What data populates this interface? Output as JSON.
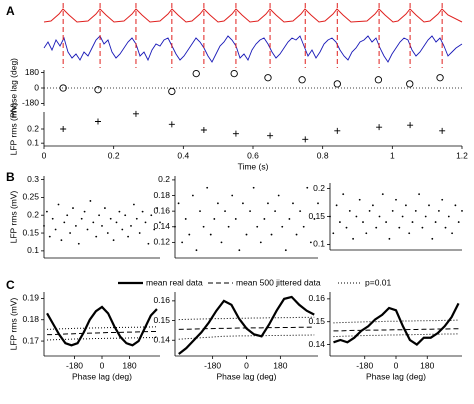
{
  "chart_data": [
    {
      "type": "scatter",
      "panel_label": "A",
      "ylabel": "Phase lag (deg)",
      "marker": "circle",
      "xlim": [
        0,
        1.2
      ],
      "ylim": [
        -210,
        210
      ],
      "yticks": [
        180,
        0,
        -180
      ],
      "reference_line": 0,
      "events": [
        0.055,
        0.161,
        0.264,
        0.367,
        0.459,
        0.551,
        0.649,
        0.75,
        0.842,
        0.962,
        1.051,
        1.143
      ],
      "event_color": "#e0201e",
      "x": [
        0.055,
        0.155,
        0.367,
        0.437,
        0.546,
        0.643,
        0.741,
        0.842,
        0.96,
        1.05,
        1.137
      ],
      "values": [
        0,
        -20,
        -40,
        168,
        168,
        120,
        96,
        48,
        96,
        48,
        120
      ],
      "color": "#000000"
    },
    {
      "type": "scatter",
      "ylabel": "LFP rms (mV)",
      "marker": "plus",
      "xlabel": "Time (s)",
      "xlim": [
        0,
        1.2
      ],
      "xticks": [
        0,
        0.2,
        0.4,
        0.6,
        0.8,
        1,
        1.2
      ],
      "ylim": [
        0.08,
        0.32
      ],
      "yticks": [
        0.2,
        0.1
      ],
      "x": [
        0.055,
        0.155,
        0.264,
        0.367,
        0.459,
        0.551,
        0.649,
        0.75,
        0.842,
        0.962,
        1.051,
        1.143
      ],
      "values": [
        0.2,
        0.253,
        0.307,
        0.233,
        0.193,
        0.167,
        0.153,
        0.127,
        0.187,
        0.213,
        0.227,
        0.187
      ],
      "color": "#000000"
    },
    {
      "type": "scatter",
      "panel_label": "B",
      "ylabel": "LFP rms (mV)",
      "marker": "dot",
      "xlim": [
        0,
        1
      ],
      "ylim": [
        0.08,
        0.31
      ],
      "yticks": [
        0.1,
        0.15,
        0.2,
        0.25,
        0.3
      ],
      "color": "#000000",
      "x": [
        0,
        0.025,
        0.05,
        0.075,
        0.1,
        0.125,
        0.15,
        0.175,
        0.2,
        0.225,
        0.25,
        0.275,
        0.3,
        0.325,
        0.35,
        0.375,
        0.4,
        0.425,
        0.45,
        0.475,
        0.5,
        0.525,
        0.55,
        0.575,
        0.6,
        0.625,
        0.65,
        0.675,
        0.7,
        0.725,
        0.75,
        0.775,
        0.8,
        0.825,
        0.85,
        0.875,
        0.9,
        0.925,
        0.95,
        0.975,
        1
      ],
      "values": [
        0.17,
        0.21,
        0.14,
        0.19,
        0.16,
        0.23,
        0.13,
        0.18,
        0.2,
        0.15,
        0.22,
        0.17,
        0.12,
        0.19,
        0.21,
        0.16,
        0.24,
        0.18,
        0.14,
        0.2,
        0.17,
        0.22,
        0.15,
        0.19,
        0.13,
        0.18,
        0.21,
        0.16,
        0.2,
        0.14,
        0.17,
        0.23,
        0.19,
        0.15,
        0.21,
        0.18,
        0.12,
        0.2,
        0.16,
        0.22,
        0.18
      ]
    },
    {
      "type": "scatter",
      "marker": "dot",
      "xlim": [
        0,
        1
      ],
      "ylim": [
        0.1,
        0.205
      ],
      "yticks": [
        0.12,
        0.14,
        0.16,
        0.18,
        0.2
      ],
      "color": "#000000",
      "x": [
        0,
        0.025,
        0.05,
        0.075,
        0.1,
        0.125,
        0.15,
        0.175,
        0.2,
        0.225,
        0.25,
        0.275,
        0.3,
        0.325,
        0.35,
        0.375,
        0.4,
        0.425,
        0.45,
        0.475,
        0.5,
        0.525,
        0.55,
        0.575,
        0.6,
        0.625,
        0.65,
        0.675,
        0.7,
        0.725,
        0.75,
        0.775,
        0.8,
        0.825,
        0.85,
        0.875,
        0.9,
        0.925,
        0.95,
        0.975,
        1
      ],
      "values": [
        0.14,
        0.17,
        0.12,
        0.15,
        0.13,
        0.18,
        0.11,
        0.16,
        0.14,
        0.19,
        0.13,
        0.15,
        0.17,
        0.12,
        0.16,
        0.14,
        0.18,
        0.15,
        0.11,
        0.17,
        0.13,
        0.16,
        0.19,
        0.14,
        0.12,
        0.15,
        0.17,
        0.13,
        0.16,
        0.18,
        0.14,
        0.11,
        0.15,
        0.17,
        0.13,
        0.16,
        0.14,
        0.19,
        0.12,
        0.15,
        0.17
      ]
    },
    {
      "type": "scatter",
      "marker": "dot",
      "xlim": [
        0,
        1
      ],
      "ylim": [
        0.09,
        0.21
      ],
      "yticks": [
        0.1,
        0.15,
        0.2
      ],
      "color": "#000000",
      "x": [
        0,
        0.025,
        0.05,
        0.075,
        0.1,
        0.125,
        0.15,
        0.175,
        0.2,
        0.225,
        0.25,
        0.275,
        0.3,
        0.325,
        0.35,
        0.375,
        0.4,
        0.425,
        0.45,
        0.475,
        0.5,
        0.525,
        0.55,
        0.575,
        0.6,
        0.625,
        0.65,
        0.675,
        0.7,
        0.725,
        0.75,
        0.775,
        0.8,
        0.825,
        0.85,
        0.875,
        0.9,
        0.925,
        0.95,
        0.975,
        1
      ],
      "values": [
        0.15,
        0.12,
        0.17,
        0.14,
        0.19,
        0.13,
        0.16,
        0.11,
        0.15,
        0.18,
        0.14,
        0.12,
        0.16,
        0.17,
        0.13,
        0.15,
        0.19,
        0.14,
        0.11,
        0.16,
        0.18,
        0.13,
        0.15,
        0.17,
        0.12,
        0.14,
        0.16,
        0.19,
        0.13,
        0.15,
        0.17,
        0.11,
        0.14,
        0.16,
        0.18,
        0.13,
        0.15,
        0.12,
        0.17,
        0.14,
        0.16
      ]
    },
    {
      "type": "line",
      "panel_label": "C",
      "ylabel": "LFP rms (mV)",
      "xlabel": "Phase lag (deg)",
      "xlim": [
        -380,
        380
      ],
      "xticks": [
        -180,
        0,
        180
      ],
      "ylim": [
        0.163,
        0.193
      ],
      "yticks": [
        0.17,
        0.18,
        0.19
      ],
      "x": [
        -360,
        -320,
        -280,
        -240,
        -200,
        -160,
        -120,
        -80,
        -40,
        0,
        40,
        80,
        120,
        160,
        200,
        240,
        280,
        320,
        360
      ],
      "series": [
        {
          "name": "mean real data",
          "style": "solid",
          "color": "#000000",
          "values": [
            0.183,
            0.178,
            0.173,
            0.169,
            0.168,
            0.169,
            0.174,
            0.18,
            0.184,
            0.186,
            0.183,
            0.177,
            0.172,
            0.169,
            0.168,
            0.17,
            0.176,
            0.182,
            0.185
          ]
        },
        {
          "name": "mean 500 jittered data",
          "style": "dashed",
          "color": "#000000",
          "values": [
            0.173,
            0.173,
            0.1732,
            0.1733,
            0.1734,
            0.1735,
            0.1736,
            0.1737,
            0.1738,
            0.1739,
            0.174,
            0.174,
            0.1741,
            0.1742,
            0.1742,
            0.1743,
            0.1744,
            0.1745,
            0.1745
          ]
        },
        {
          "name": "p=0.01",
          "style": "dotted",
          "color": "#000000",
          "values": [
            0.1755,
            0.1756,
            0.1757,
            0.1758,
            0.1759,
            0.176,
            0.176,
            0.1761,
            0.1762,
            0.1762,
            0.1763,
            0.1763,
            0.1764,
            0.1764,
            0.1765,
            0.1765,
            0.1766,
            0.1766,
            0.1767
          ]
        },
        {
          "style": "dotted",
          "color": "#000000",
          "values": [
            0.1705,
            0.1706,
            0.1707,
            0.1708,
            0.1709,
            0.171,
            0.171,
            0.1711,
            0.1712,
            0.1712,
            0.1713,
            0.1713,
            0.1714,
            0.1714,
            0.1715,
            0.1715,
            0.1716,
            0.1716,
            0.1717
          ]
        }
      ]
    },
    {
      "type": "line",
      "xlabel": "Phase lag (deg)",
      "xlim": [
        -380,
        380
      ],
      "xticks": [
        -180,
        0,
        180
      ],
      "ylim": [
        0.132,
        0.1645
      ],
      "yticks": [
        0.14,
        0.15,
        0.16
      ],
      "x": [
        -360,
        -320,
        -280,
        -240,
        -200,
        -160,
        -120,
        -80,
        -40,
        0,
        40,
        80,
        120,
        160,
        200,
        240,
        280,
        320,
        360
      ],
      "series": [
        {
          "style": "solid",
          "color": "#000000",
          "values": [
            0.133,
            0.136,
            0.14,
            0.144,
            0.149,
            0.155,
            0.16,
            0.158,
            0.151,
            0.146,
            0.143,
            0.142,
            0.148,
            0.155,
            0.161,
            0.162,
            0.158,
            0.155,
            0.153
          ]
        },
        {
          "style": "dashed",
          "color": "#000000",
          "values": [
            0.1455,
            0.1456,
            0.1457,
            0.1458,
            0.1459,
            0.146,
            0.146,
            0.1461,
            0.1462,
            0.1462,
            0.1463,
            0.1463,
            0.1464,
            0.1464,
            0.1465,
            0.1465,
            0.1466,
            0.1466,
            0.1467
          ]
        },
        {
          "style": "dotted",
          "color": "#000000",
          "values": [
            0.1505,
            0.1506,
            0.1507,
            0.1508,
            0.1509,
            0.151,
            0.151,
            0.1511,
            0.1512,
            0.1512,
            0.1513,
            0.1513,
            0.1514,
            0.1514,
            0.1515,
            0.1515,
            0.1516,
            0.1516,
            0.1517
          ]
        },
        {
          "style": "dotted",
          "color": "#000000",
          "values": [
            0.1405,
            0.1408,
            0.141,
            0.1413,
            0.1415,
            0.1418,
            0.142,
            0.1421,
            0.1422,
            0.1422,
            0.1423,
            0.1423,
            0.1424,
            0.1424,
            0.1425,
            0.1425,
            0.1426,
            0.1426,
            0.1427
          ]
        }
      ]
    },
    {
      "type": "line",
      "xlabel": "Phase lag (deg)",
      "xlim": [
        -380,
        380
      ],
      "xticks": [
        -180,
        0,
        180
      ],
      "ylim": [
        0.135,
        0.163
      ],
      "yticks": [
        0.14,
        0.15,
        0.16
      ],
      "x": [
        -360,
        -320,
        -280,
        -240,
        -200,
        -160,
        -120,
        -80,
        -40,
        0,
        40,
        80,
        120,
        160,
        200,
        240,
        280,
        320,
        360
      ],
      "series": [
        {
          "style": "solid",
          "color": "#000000",
          "values": [
            0.141,
            0.142,
            0.141,
            0.143,
            0.146,
            0.148,
            0.151,
            0.153,
            0.156,
            0.155,
            0.148,
            0.142,
            0.14,
            0.143,
            0.143,
            0.145,
            0.148,
            0.152,
            0.158
          ]
        },
        {
          "style": "dashed",
          "color": "#000000",
          "values": [
            0.146,
            0.146,
            0.1461,
            0.1462,
            0.1462,
            0.1463,
            0.1463,
            0.1464,
            0.1464,
            0.1465,
            0.1465,
            0.1466,
            0.1466,
            0.1467,
            0.1467,
            0.1468,
            0.1468,
            0.1469,
            0.1469
          ]
        },
        {
          "style": "dotted",
          "color": "#000000",
          "values": [
            0.1495,
            0.1496,
            0.1497,
            0.1498,
            0.1499,
            0.15,
            0.15,
            0.1501,
            0.1502,
            0.1502,
            0.1503,
            0.1503,
            0.1504,
            0.1504,
            0.1505,
            0.1505,
            0.1506,
            0.1506,
            0.1507
          ]
        },
        {
          "style": "dotted",
          "color": "#000000",
          "values": [
            0.1435,
            0.1436,
            0.1437,
            0.1438,
            0.1439,
            0.144,
            0.144,
            0.1441,
            0.1442,
            0.1442,
            0.1443,
            0.1443,
            0.1444,
            0.1444,
            0.1445,
            0.1445,
            0.1446,
            0.1446,
            0.1447
          ]
        }
      ]
    }
  ]
}
